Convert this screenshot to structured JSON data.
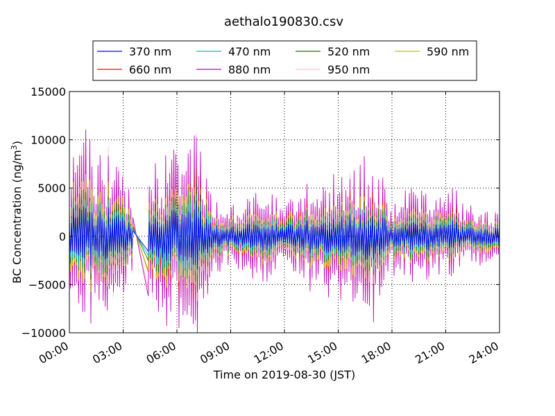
{
  "chart_data": {
    "type": "line",
    "title": "aethalo190830.csv",
    "xlabel": "Time on 2019-08-30 (JST)",
    "ylabel_main": "BC Concentration (ng/m",
    "ylabel_sup": "3",
    "ylabel_end": ")",
    "xlim_hours": [
      0,
      24
    ],
    "ylim": [
      -10000,
      15000
    ],
    "grid": true,
    "legend_position": "above plot, 4 columns",
    "x_ticks": [
      {
        "value": 0,
        "label": "00:00"
      },
      {
        "value": 3,
        "label": "03:00"
      },
      {
        "value": 6,
        "label": "06:00"
      },
      {
        "value": 9,
        "label": "09:00"
      },
      {
        "value": 12,
        "label": "12:00"
      },
      {
        "value": 15,
        "label": "15:00"
      },
      {
        "value": 18,
        "label": "18:00"
      },
      {
        "value": 21,
        "label": "21:00"
      },
      {
        "value": 24,
        "label": "24:00"
      }
    ],
    "y_ticks": [
      {
        "value": 15000,
        "label": "15000"
      },
      {
        "value": 10000,
        "label": "10000"
      },
      {
        "value": 5000,
        "label": "5000"
      },
      {
        "value": 0,
        "label": "0"
      },
      {
        "value": -5000,
        "label": "−5000"
      },
      {
        "value": -10000,
        "label": "−10000"
      }
    ],
    "series": [
      {
        "name": "370 nm",
        "color": "#0000ff",
        "scale": 0.3,
        "seed": 11
      },
      {
        "name": "470 nm",
        "color": "#00bfbf",
        "scale": 0.4,
        "seed": 23
      },
      {
        "name": "520 nm",
        "color": "#008000",
        "scale": 0.48,
        "seed": 37
      },
      {
        "name": "590 nm",
        "color": "#bfbf00",
        "scale": 0.58,
        "seed": 41
      },
      {
        "name": "660 nm",
        "color": "#ff0000",
        "scale": 0.62,
        "seed": 53
      },
      {
        "name": "880 nm",
        "color": "#bf00bf",
        "scale": 1.0,
        "seed": 67
      },
      {
        "name": "950 nm",
        "color": "#ffc0cb",
        "scale": 0.92,
        "seed": 79
      }
    ],
    "envelope": [
      {
        "hour": 0.0,
        "amp": 9000
      },
      {
        "hour": 1.0,
        "amp": 10500
      },
      {
        "hour": 2.0,
        "amp": 9500
      },
      {
        "hour": 2.8,
        "amp": 9000
      },
      {
        "hour": 3.5,
        "amp": 4000
      },
      {
        "hour": 4.5,
        "amp": 6000
      },
      {
        "hour": 5.5,
        "amp": 9000
      },
      {
        "hour": 6.5,
        "amp": 10000
      },
      {
        "hour": 7.2,
        "amp": 11500
      },
      {
        "hour": 8.0,
        "amp": 4000
      },
      {
        "hour": 9.5,
        "amp": 3500
      },
      {
        "hour": 10.5,
        "amp": 5000
      },
      {
        "hour": 12.0,
        "amp": 4500
      },
      {
        "hour": 13.0,
        "amp": 5000
      },
      {
        "hour": 14.5,
        "amp": 6000
      },
      {
        "hour": 16.0,
        "amp": 7000
      },
      {
        "hour": 17.0,
        "amp": 8000
      },
      {
        "hour": 18.0,
        "amp": 4000
      },
      {
        "hour": 19.5,
        "amp": 5000
      },
      {
        "hour": 20.5,
        "amp": 4500
      },
      {
        "hour": 21.5,
        "amp": 5000
      },
      {
        "hour": 22.5,
        "amp": 3000
      },
      {
        "hour": 24.0,
        "amp": 3000
      }
    ],
    "gap_hours": [
      3.55,
      4.4
    ]
  }
}
